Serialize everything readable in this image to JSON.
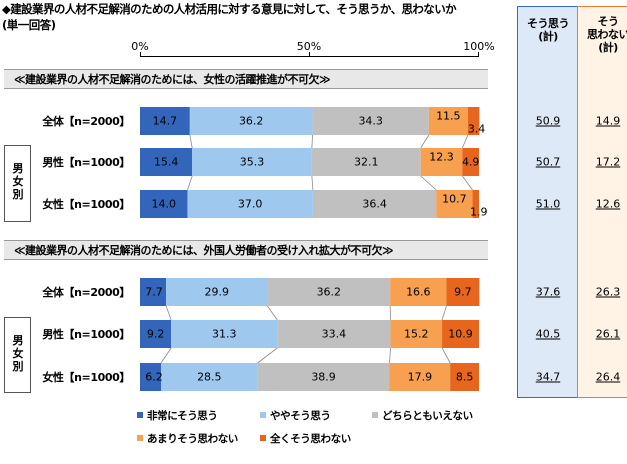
{
  "header": {
    "title": "◆建設業界の人材不足解消のための人材活用に対する意見に対して、そう思うか、思わないか",
    "note": "(単一回答)"
  },
  "axis": {
    "ticks": [
      "0%",
      "50%",
      "100%"
    ]
  },
  "summary_headers": {
    "agree": "そう思う\n(計)",
    "disagree": "そう\n思わない\n(計)"
  },
  "legend": [
    "非常にそう思う",
    "ややそう思う",
    "どちらともいえない",
    "あまりそう思わない",
    "全くそう思わない"
  ],
  "colors": {
    "series": [
      "#3366bb",
      "#9ec8ee",
      "#c0c0c0",
      "#f7a04f",
      "#e8651d"
    ],
    "agree_col_border": "#2d6cbf",
    "disagree_col_border": "#ec7c29"
  },
  "chart_data": [
    {
      "type": "bar",
      "orientation": "horizontal",
      "stacked": true,
      "title": "≪建設業界の人材不足解消のためには、女性の活躍推進が不可欠≫",
      "group_label": "男女別",
      "categories": [
        "全体【n=2000】",
        "男性【n=1000】",
        "女性【n=1000】"
      ],
      "series": [
        {
          "name": "非常にそう思う",
          "values": [
            14.7,
            15.4,
            14.0
          ]
        },
        {
          "name": "ややそう思う",
          "values": [
            36.2,
            35.3,
            37.0
          ]
        },
        {
          "name": "どちらともいえない",
          "values": [
            34.3,
            32.1,
            36.4
          ]
        },
        {
          "name": "あまりそう思わない",
          "values": [
            11.5,
            12.3,
            10.7
          ]
        },
        {
          "name": "全くそう思わない",
          "values": [
            3.4,
            4.9,
            1.9
          ]
        }
      ],
      "agree_total": [
        "50.9",
        "50.7",
        "51.0"
      ],
      "disagree_total": [
        "14.9",
        "17.2",
        "12.6"
      ],
      "xlim": [
        0,
        100
      ]
    },
    {
      "type": "bar",
      "orientation": "horizontal",
      "stacked": true,
      "title": "≪建設業界の人材不足解消のためには、外国人労働者の受け入れ拡大が不可欠≫",
      "group_label": "男女別",
      "categories": [
        "全体【n=2000】",
        "男性【n=1000】",
        "女性【n=1000】"
      ],
      "series": [
        {
          "name": "非常にそう思う",
          "values": [
            7.7,
            9.2,
            6.2
          ]
        },
        {
          "name": "ややそう思う",
          "values": [
            29.9,
            31.3,
            28.5
          ]
        },
        {
          "name": "どちらともいえない",
          "values": [
            36.2,
            33.4,
            38.9
          ]
        },
        {
          "name": "あまりそう思わない",
          "values": [
            16.6,
            15.2,
            17.9
          ]
        },
        {
          "name": "全くそう思わない",
          "values": [
            9.7,
            10.9,
            8.5
          ]
        }
      ],
      "agree_total": [
        "37.6",
        "40.5",
        "34.7"
      ],
      "disagree_total": [
        "26.3",
        "26.1",
        "26.4"
      ],
      "xlim": [
        0,
        100
      ]
    }
  ]
}
